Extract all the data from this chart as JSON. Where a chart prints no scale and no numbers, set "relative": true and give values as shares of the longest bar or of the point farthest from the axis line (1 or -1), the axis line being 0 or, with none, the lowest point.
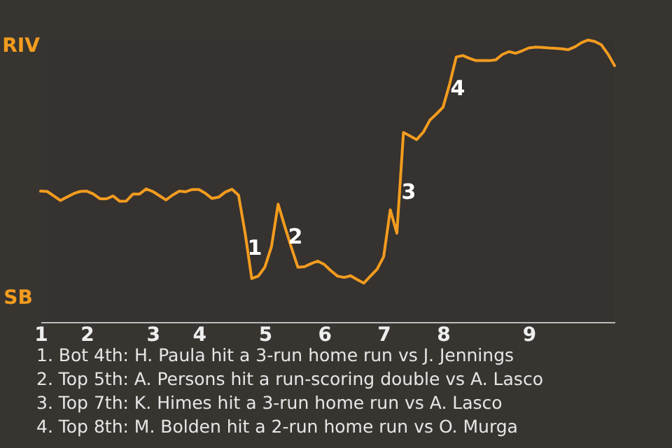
{
  "chart_data": {
    "type": "line",
    "relative": true,
    "categories": [
      "1",
      null,
      null,
      null,
      null,
      null,
      null,
      "2",
      null,
      null,
      null,
      null,
      null,
      null,
      null,
      null,
      null,
      "3",
      null,
      null,
      null,
      null,
      null,
      null,
      "4",
      null,
      null,
      null,
      null,
      null,
      null,
      null,
      null,
      null,
      "5",
      null,
      null,
      null,
      null,
      null,
      null,
      null,
      null,
      "6",
      null,
      null,
      null,
      null,
      null,
      null,
      null,
      null,
      "7",
      null,
      null,
      null,
      null,
      null,
      null,
      null,
      null,
      "8",
      null,
      null,
      null,
      null,
      null,
      null,
      null,
      null,
      null,
      null,
      null,
      null,
      "9",
      null,
      null,
      null,
      null,
      null,
      null,
      null,
      null,
      null,
      null,
      null,
      null,
      null
    ],
    "series": [
      {
        "color": "#f39c1f",
        "values": [
          0.464,
          0.463,
          0.447,
          0.431,
          0.443,
          0.455,
          0.463,
          0.464,
          0.454,
          0.437,
          0.437,
          0.447,
          0.428,
          0.429,
          0.454,
          0.454,
          0.472,
          0.463,
          0.448,
          0.433,
          0.45,
          0.464,
          0.462,
          0.47,
          0.47,
          0.456,
          0.438,
          0.443,
          0.461,
          0.471,
          0.45,
          0.315,
          0.154,
          0.163,
          0.195,
          0.268,
          0.418,
          0.34,
          0.265,
          0.194,
          0.196,
          0.207,
          0.216,
          0.204,
          0.182,
          0.163,
          0.158,
          0.164,
          0.15,
          0.138,
          0.163,
          0.187,
          0.232,
          0.398,
          0.315,
          0.672,
          0.66,
          0.647,
          0.673,
          0.716,
          0.738,
          0.762,
          0.844,
          0.94,
          0.945,
          0.935,
          0.927,
          0.927,
          0.927,
          0.93,
          0.949,
          0.959,
          0.953,
          0.962,
          0.972,
          0.975,
          0.974,
          0.972,
          0.971,
          0.969,
          0.966,
          0.976,
          0.991,
          1.0,
          0.995,
          0.983,
          0.95,
          0.909
        ]
      }
    ],
    "marker": "none",
    "annotations": [
      "RIV",
      "SB",
      "1",
      "2",
      "3",
      "4",
      "1. Bot 4th: H. Paula hit a 3-run home run vs J. Jennings",
      "2. Top 5th: A. Persons hit a run-scoring double vs A. Lasco",
      "3. Top 7th: K. Himes hit a 3-run home run vs A. Lasco",
      "4. Top 8th: M. Bolden hit a 2-run home run vs O. Murga"
    ]
  }
}
